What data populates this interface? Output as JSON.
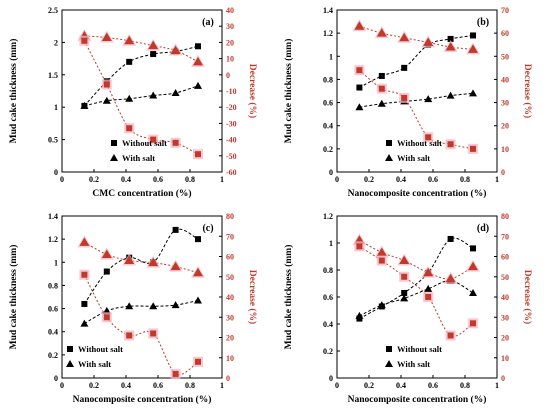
{
  "chart_data": [
    {
      "type": "scatter",
      "panel_label": "(a)",
      "xlabel": "CMC concentration (%)",
      "ylabel": "Mud cake thickness (mm)",
      "ylabel_right": "Decrease (%)",
      "xlim": [
        0,
        1
      ],
      "xticks": [
        "0",
        "0.2",
        "0.4",
        "0.6",
        "0.8",
        "1"
      ],
      "ylim": [
        0,
        2.5
      ],
      "yticks": [
        "0",
        "0.5",
        "1",
        "1.5",
        "2",
        "2.5"
      ],
      "ylim_right": [
        -60,
        40
      ],
      "yticks_right": [
        "-60",
        "-50",
        "-40",
        "-30",
        "-20",
        "-10",
        "0",
        "10",
        "20",
        "30",
        "40"
      ],
      "legend": [
        "Without salt",
        "With salt"
      ],
      "legend_position": "bottom-center",
      "series": [
        {
          "name": "Without salt",
          "axis": "left",
          "marker": "square",
          "x": [
            0.14,
            0.28,
            0.42,
            0.57,
            0.71,
            0.85
          ],
          "y": [
            1.02,
            1.4,
            1.7,
            1.82,
            1.86,
            1.94
          ]
        },
        {
          "name": "With salt",
          "axis": "left",
          "marker": "triangle",
          "x": [
            0.14,
            0.28,
            0.42,
            0.57,
            0.71,
            0.85
          ],
          "y": [
            1.02,
            1.1,
            1.13,
            1.18,
            1.22,
            1.33
          ]
        },
        {
          "axis": "right",
          "marker": "red-triangle",
          "x": [
            0.14,
            0.28,
            0.42,
            0.57,
            0.71,
            0.85
          ],
          "y": [
            24,
            23,
            21,
            18,
            15,
            8
          ]
        },
        {
          "axis": "right",
          "marker": "red-square",
          "x": [
            0.14,
            0.28,
            0.42,
            0.57,
            0.71,
            0.85
          ],
          "y": [
            21,
            -6,
            -33,
            -40,
            -42,
            -49
          ]
        }
      ]
    },
    {
      "type": "scatter",
      "panel_label": "(b)",
      "xlabel": "Nanocomposite concentration (%)",
      "ylabel": "Mud cake thickness (mm)",
      "ylabel_right": "Decrease (%)",
      "xlim": [
        0,
        1
      ],
      "xticks": [
        "0",
        "0.2",
        "0.4",
        "0.6",
        "0.8",
        "1"
      ],
      "ylim": [
        0,
        1.4
      ],
      "yticks": [
        "0",
        "0.2",
        "0.4",
        "0.6",
        "0.8",
        "1",
        "1.2",
        "1.4"
      ],
      "ylim_right": [
        0,
        70
      ],
      "yticks_right": [
        "0",
        "10",
        "20",
        "30",
        "40",
        "50",
        "60",
        "70"
      ],
      "legend": [
        "Without salt",
        "With salt"
      ],
      "legend_position": "bottom-center",
      "series": [
        {
          "name": "Without salt",
          "axis": "left",
          "marker": "square",
          "x": [
            0.14,
            0.28,
            0.42,
            0.57,
            0.71,
            0.85
          ],
          "y": [
            0.73,
            0.83,
            0.9,
            1.1,
            1.15,
            1.18
          ]
        },
        {
          "name": "With salt",
          "axis": "left",
          "marker": "triangle",
          "x": [
            0.14,
            0.28,
            0.42,
            0.57,
            0.71,
            0.85
          ],
          "y": [
            0.56,
            0.59,
            0.61,
            0.63,
            0.66,
            0.68
          ]
        },
        {
          "axis": "right",
          "marker": "red-triangle",
          "x": [
            0.14,
            0.28,
            0.42,
            0.57,
            0.71,
            0.85
          ],
          "y": [
            63,
            60,
            58,
            56,
            54,
            53
          ]
        },
        {
          "axis": "right",
          "marker": "red-square",
          "x": [
            0.14,
            0.28,
            0.42,
            0.57,
            0.71,
            0.85
          ],
          "y": [
            44,
            36,
            32,
            15,
            12,
            10
          ]
        }
      ]
    },
    {
      "type": "scatter",
      "panel_label": "(c)",
      "xlabel": "Nanocomposite concentration (%)",
      "ylabel": "Mud cake thickness (mm)",
      "ylabel_right": "Decrease (%)",
      "xlim": [
        0,
        1
      ],
      "xticks": [
        "0",
        "0.2",
        "0.4",
        "0.6",
        "0.8",
        "1"
      ],
      "ylim": [
        0,
        1.4
      ],
      "yticks": [
        "0",
        "0.2",
        "0.4",
        "0.6",
        "0.8",
        "1",
        "1.2",
        "1.4"
      ],
      "ylim_right": [
        0,
        80
      ],
      "yticks_right": [
        "0",
        "10",
        "20",
        "30",
        "40",
        "50",
        "60",
        "70",
        "80"
      ],
      "legend": [
        "Without salt",
        "With salt"
      ],
      "legend_position": "bottom-left",
      "series": [
        {
          "name": "Without salt",
          "axis": "left",
          "marker": "square",
          "x": [
            0.14,
            0.28,
            0.42,
            0.57,
            0.71,
            0.85
          ],
          "y": [
            0.64,
            0.92,
            1.04,
            1.0,
            1.28,
            1.2
          ]
        },
        {
          "name": "With salt",
          "axis": "left",
          "marker": "triangle",
          "x": [
            0.14,
            0.28,
            0.42,
            0.57,
            0.71,
            0.85
          ],
          "y": [
            0.47,
            0.58,
            0.62,
            0.62,
            0.63,
            0.67
          ]
        },
        {
          "axis": "right",
          "marker": "red-triangle",
          "x": [
            0.14,
            0.28,
            0.42,
            0.57,
            0.71,
            0.85
          ],
          "y": [
            67,
            61,
            58,
            57,
            55,
            52
          ]
        },
        {
          "axis": "right",
          "marker": "red-square",
          "x": [
            0.14,
            0.28,
            0.42,
            0.57,
            0.71,
            0.85
          ],
          "y": [
            51,
            30,
            21,
            22,
            2,
            8
          ]
        }
      ]
    },
    {
      "type": "scatter",
      "panel_label": "(d)",
      "xlabel": "Nanocomposite concentration (%)",
      "ylabel": "Mud cake thickness (mm)",
      "ylabel_right": "Decrease (%)",
      "xlim": [
        0,
        1
      ],
      "xticks": [
        "0",
        "0.2",
        "0.4",
        "0.6",
        "0.8",
        "1"
      ],
      "ylim": [
        0,
        1.2
      ],
      "yticks": [
        "0",
        "0.2",
        "0.4",
        "0.6",
        "0.8",
        "1",
        "1.2"
      ],
      "ylim_right": [
        0,
        80
      ],
      "yticks_right": [
        "0",
        "10",
        "20",
        "30",
        "40",
        "50",
        "60",
        "70",
        "80"
      ],
      "legend": [
        "Without salt",
        "With salt"
      ],
      "legend_position": "bottom-center",
      "series": [
        {
          "name": "Without salt",
          "axis": "left",
          "marker": "square",
          "x": [
            0.14,
            0.28,
            0.42,
            0.57,
            0.71,
            0.85
          ],
          "y": [
            0.44,
            0.53,
            0.63,
            0.78,
            1.03,
            0.96
          ]
        },
        {
          "name": "With salt",
          "axis": "left",
          "marker": "triangle",
          "x": [
            0.14,
            0.28,
            0.42,
            0.57,
            0.71,
            0.85
          ],
          "y": [
            0.46,
            0.54,
            0.59,
            0.66,
            0.72,
            0.63
          ]
        },
        {
          "axis": "right",
          "marker": "red-triangle",
          "x": [
            0.14,
            0.28,
            0.42,
            0.57,
            0.71,
            0.85
          ],
          "y": [
            68,
            62,
            58,
            52,
            49,
            55
          ]
        },
        {
          "axis": "right",
          "marker": "red-square",
          "x": [
            0.14,
            0.28,
            0.42,
            0.57,
            0.71,
            0.85
          ],
          "y": [
            65,
            58,
            50,
            40,
            21,
            27
          ]
        }
      ]
    }
  ]
}
